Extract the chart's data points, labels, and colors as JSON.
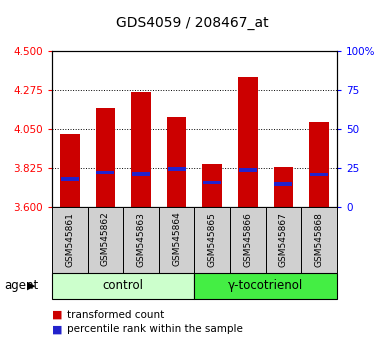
{
  "title": "GDS4059 / 208467_at",
  "samples": [
    "GSM545861",
    "GSM545862",
    "GSM545863",
    "GSM545864",
    "GSM545865",
    "GSM545866",
    "GSM545867",
    "GSM545868"
  ],
  "red_values": [
    4.02,
    4.17,
    4.265,
    4.12,
    3.848,
    4.35,
    3.83,
    4.09
  ],
  "blue_values": [
    3.762,
    3.8,
    3.792,
    3.818,
    3.742,
    3.812,
    3.732,
    3.788
  ],
  "ymin": 3.6,
  "ymax": 4.5,
  "yticks_left": [
    3.6,
    3.825,
    4.05,
    4.275,
    4.5
  ],
  "yticks_right_vals": [
    0,
    25,
    50,
    75,
    100
  ],
  "yticks_right_labels": [
    "0",
    "25",
    "50",
    "75",
    "100%"
  ],
  "groups": [
    {
      "label": "control",
      "indices": [
        0,
        1,
        2,
        3
      ],
      "bg_color": "#ccffcc",
      "edge_color": "#000000"
    },
    {
      "label": "γ-tocotrienol",
      "indices": [
        4,
        5,
        6,
        7
      ],
      "bg_color": "#44ee44",
      "edge_color": "#000000"
    }
  ],
  "bar_color": "#cc0000",
  "blue_color": "#2222cc",
  "bar_width": 0.55,
  "legend_items": [
    "transformed count",
    "percentile rank within the sample"
  ],
  "agent_label": "agent"
}
